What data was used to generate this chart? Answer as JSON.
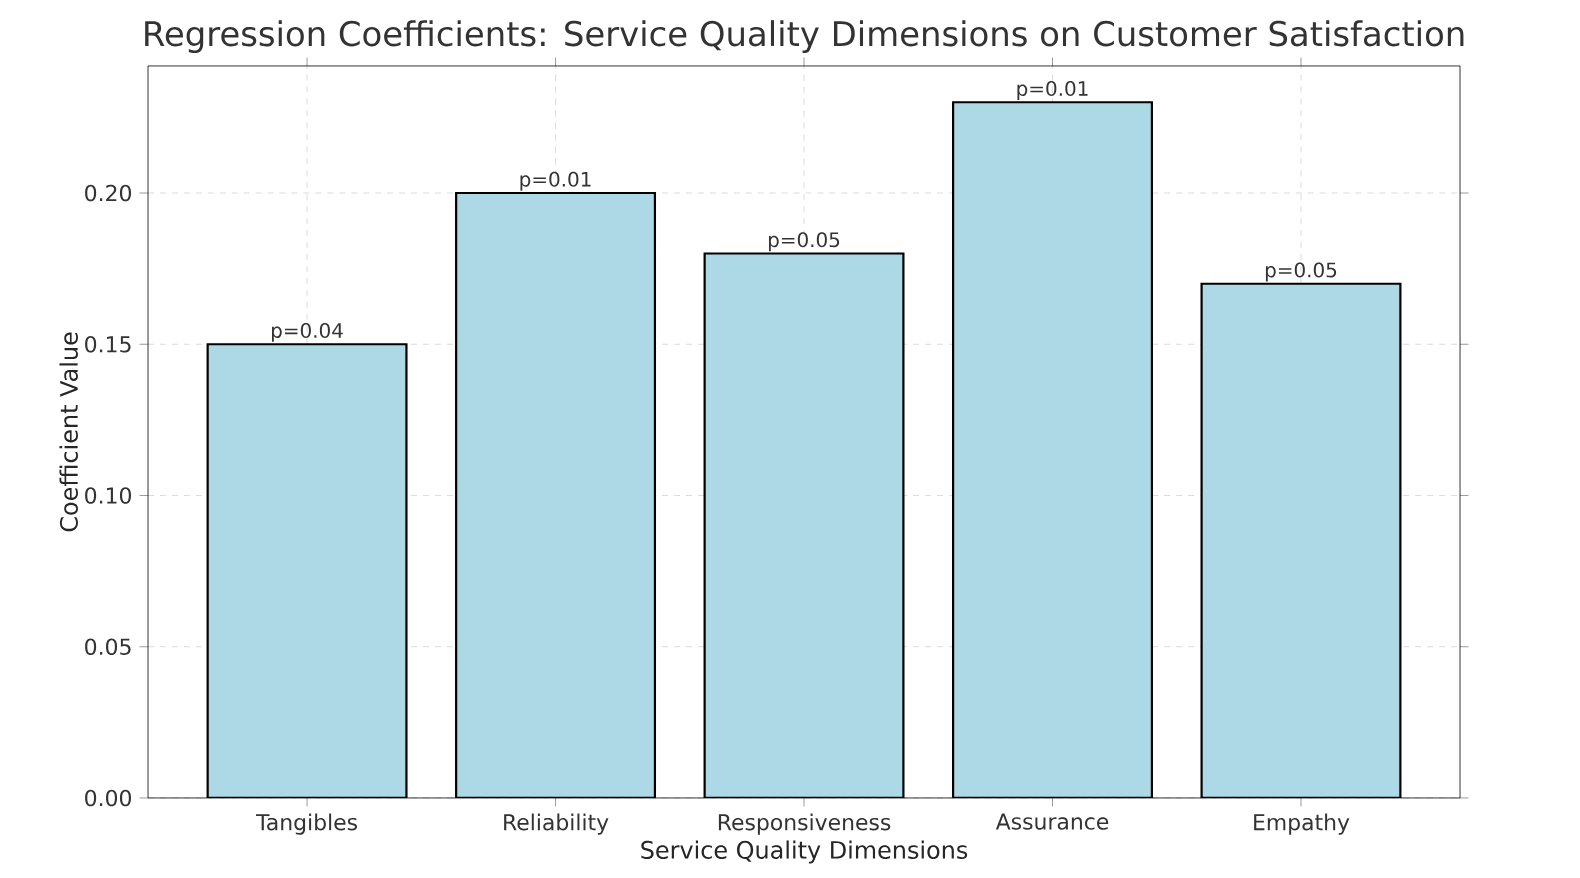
{
  "chart_data": {
    "type": "bar",
    "title": "Regression Coefficients: Service Quality Dimensions on Customer Satisfaction",
    "xlabel": "Service Quality Dimensions",
    "ylabel": "Coefficient Value",
    "categories": [
      "Tangibles",
      "Reliability",
      "Responsiveness",
      "Assurance",
      "Empathy"
    ],
    "values": [
      0.15,
      0.2,
      0.18,
      0.23,
      0.17
    ],
    "annotations": [
      {
        "text": "p=0.04",
        "x": "Tangibles",
        "y": 0.15
      },
      {
        "text": "p=0.01",
        "x": "Reliability",
        "y": 0.2
      },
      {
        "text": "p=0.05",
        "x": "Responsiveness",
        "y": 0.18
      },
      {
        "text": "p=0.01",
        "x": "Assurance",
        "y": 0.23
      },
      {
        "text": "p=0.05",
        "x": "Empathy",
        "y": 0.17
      }
    ],
    "color": "#add8e6",
    "ylim": [
      0,
      0.242
    ],
    "yticks": [
      {
        "value": 0,
        "label": "0.00"
      },
      {
        "value": 0.05,
        "label": "0.05"
      },
      {
        "value": 0.1,
        "label": "0.10"
      },
      {
        "value": 0.15,
        "label": "0.15"
      },
      {
        "value": 0.2,
        "label": "0.20"
      }
    ],
    "grid": true
  }
}
